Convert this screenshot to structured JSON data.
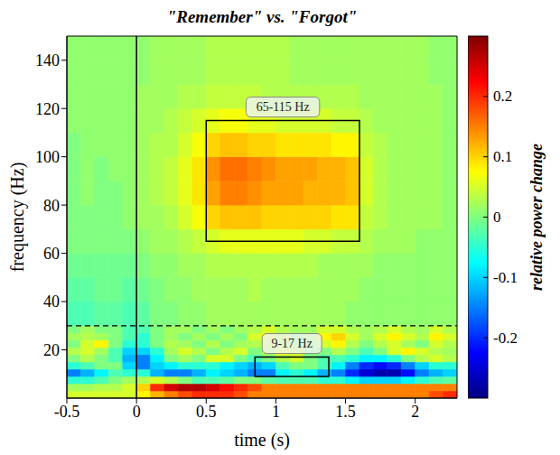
{
  "chart_data": {
    "type": "heatmap",
    "title": "\"Remember\" vs. \"Forgot\"",
    "x_label": "time (s)",
    "y_label": "frequency (Hz)",
    "xlim": [
      -0.5,
      2.3
    ],
    "ylim": [
      0,
      150
    ],
    "xticks": [
      -0.5,
      0,
      0.5,
      1,
      1.5,
      2
    ],
    "yticks": [
      20,
      40,
      60,
      80,
      100,
      120,
      140
    ],
    "x_edges": [
      -0.5,
      -0.4,
      -0.3,
      -0.2,
      -0.1,
      0,
      0.1,
      0.2,
      0.3,
      0.4,
      0.5,
      0.6,
      0.7,
      0.8,
      0.9,
      1,
      1.1,
      1.2,
      1.3,
      1.4,
      1.5,
      1.6,
      1.7,
      1.8,
      1.9,
      2,
      2.1,
      2.2,
      2.3
    ],
    "y_edges": [
      0,
      3,
      6,
      9,
      12,
      15,
      18,
      21,
      24,
      27,
      30,
      40,
      50,
      60,
      70,
      80,
      90,
      100,
      110,
      120,
      130,
      140,
      150
    ],
    "values": [
      [
        0.05,
        0.05,
        0.05,
        0.05,
        0.05,
        0.08,
        0.12,
        0.15,
        0.18,
        0.2,
        0.2,
        0.2,
        0.18,
        0.15,
        0.15,
        0.15,
        0.15,
        0.15,
        0.15,
        0.15,
        0.15,
        0.15,
        0.15,
        0.15,
        0.15,
        0.15,
        0.18,
        0.2
      ],
      [
        0.02,
        0.02,
        0.03,
        0.03,
        0.05,
        0.1,
        0.2,
        0.25,
        0.27,
        0.27,
        0.25,
        0.22,
        0.2,
        0.18,
        0.15,
        0.15,
        0.15,
        0.15,
        0.15,
        0.15,
        0.15,
        0.15,
        0.15,
        0.15,
        0.15,
        0.15,
        0.15,
        0.15
      ],
      [
        -0.05,
        -0.05,
        -0.03,
        0,
        0.02,
        0.03,
        0.05,
        0.03,
        0,
        -0.03,
        -0.03,
        -0.02,
        0,
        0,
        -0.02,
        -0.03,
        -0.03,
        -0.03,
        -0.05,
        -0.05,
        -0.08,
        -0.1,
        -0.1,
        -0.1,
        -0.08,
        -0.05,
        -0.03,
        -0.02
      ],
      [
        -0.15,
        -0.12,
        -0.08,
        -0.03,
        -0.05,
        -0.05,
        -0.12,
        -0.15,
        -0.15,
        -0.12,
        -0.08,
        -0.1,
        -0.12,
        -0.15,
        -0.15,
        -0.08,
        -0.05,
        -0.08,
        -0.12,
        -0.15,
        -0.2,
        -0.25,
        -0.27,
        -0.27,
        -0.22,
        -0.15,
        -0.12,
        -0.1
      ],
      [
        -0.05,
        -0.03,
        0,
        0,
        -0.1,
        -0.15,
        -0.1,
        -0.08,
        -0.05,
        -0.05,
        -0.05,
        -0.08,
        -0.1,
        -0.12,
        -0.1,
        -0.03,
        0,
        0,
        -0.03,
        -0.08,
        -0.15,
        -0.2,
        -0.22,
        -0.2,
        -0.15,
        -0.1,
        -0.05,
        -0.05
      ],
      [
        0,
        0.03,
        0,
        -0.03,
        -0.12,
        -0.15,
        -0.08,
        0,
        0.02,
        0,
        0.05,
        0.05,
        0,
        -0.03,
        0,
        0.03,
        0.05,
        0,
        -0.03,
        -0.03,
        -0.05,
        -0.08,
        -0.08,
        -0.05,
        0,
        0.03,
        0.05,
        0.03
      ],
      [
        0.03,
        0.05,
        0.02,
        -0.03,
        -0.1,
        -0.1,
        -0.05,
        0.02,
        0.05,
        0.03,
        0,
        0.03,
        0.05,
        0,
        0.03,
        0.08,
        0.05,
        0,
        0,
        0.03,
        0,
        -0.03,
        0,
        0.05,
        0.08,
        0.05,
        0.03,
        0.02
      ],
      [
        0,
        0.05,
        0.08,
        0,
        -0.05,
        -0.05,
        0,
        0.03,
        0.02,
        0,
        0.03,
        0,
        0.02,
        0.03,
        0.05,
        0.03,
        0,
        0.02,
        0.05,
        0.08,
        0.03,
        0,
        0.03,
        0.05,
        0.02,
        0,
        0.05,
        0.03
      ],
      [
        0.02,
        0.03,
        0.02,
        0,
        -0.03,
        -0.05,
        0,
        0.02,
        0,
        0.02,
        0,
        0.02,
        0,
        0.05,
        0.08,
        0.05,
        0,
        0.03,
        0.08,
        0.1,
        0.05,
        0.02,
        0.05,
        0.08,
        0.05,
        0.03,
        0.08,
        0.05
      ],
      [
        0,
        0.02,
        0,
        0,
        -0.03,
        -0.03,
        0,
        0.02,
        0.02,
        0,
        0.02,
        0,
        0.02,
        0.03,
        0.05,
        0.03,
        0.02,
        0.02,
        0.05,
        0.05,
        0.03,
        0.02,
        0.03,
        0.05,
        0.03,
        0.02,
        0.05,
        0.03
      ],
      [
        -0.03,
        -0.03,
        -0.02,
        -0.02,
        -0.03,
        -0.02,
        0,
        0,
        0.01,
        0.01,
        0.02,
        0.02,
        0.02,
        0.02,
        0.02,
        0.02,
        0.02,
        0.02,
        0.02,
        0.02,
        0.01,
        0.01,
        0.01,
        0.01,
        0.01,
        0.01,
        0.01,
        0.01
      ],
      [
        -0.02,
        -0.02,
        -0.01,
        -0.01,
        -0.02,
        -0.01,
        0,
        0.01,
        0.01,
        0.02,
        0.02,
        0.02,
        0.02,
        0.03,
        0.02,
        0.02,
        0.02,
        0.02,
        0.02,
        0.02,
        0.02,
        0.01,
        0.01,
        0.01,
        0.01,
        0.01,
        0.01,
        0.01
      ],
      [
        -0.01,
        -0.01,
        -0.01,
        -0.01,
        -0.01,
        0,
        0.01,
        0.01,
        0.02,
        0.02,
        0.03,
        0.03,
        0.03,
        0.03,
        0.03,
        0.03,
        0.03,
        0.03,
        0.02,
        0.02,
        0.02,
        0.02,
        0.01,
        0.01,
        0.01,
        0.01,
        0.01,
        0.01
      ],
      [
        0,
        0,
        0,
        0,
        0,
        0.01,
        0.02,
        0.02,
        0.03,
        0.04,
        0.05,
        0.06,
        0.06,
        0.06,
        0.06,
        0.06,
        0.06,
        0.05,
        0.05,
        0.04,
        0.04,
        0.03,
        0.02,
        0.02,
        0.02,
        0.01,
        0.01,
        0.01
      ],
      [
        0,
        0,
        0,
        0,
        0.01,
        0.02,
        0.02,
        0.03,
        0.05,
        0.07,
        0.1,
        0.11,
        0.11,
        0.11,
        0.1,
        0.1,
        0.1,
        0.1,
        0.1,
        0.09,
        0.09,
        0.04,
        0.03,
        0.02,
        0.02,
        0.02,
        0.02,
        0.01
      ],
      [
        0,
        0.01,
        0,
        0,
        0.01,
        0.02,
        0.03,
        0.04,
        0.06,
        0.09,
        0.13,
        0.15,
        0.15,
        0.14,
        0.13,
        0.13,
        0.13,
        0.12,
        0.12,
        0.12,
        0.11,
        0.05,
        0.03,
        0.02,
        0.02,
        0.02,
        0.02,
        0.01
      ],
      [
        0,
        0.01,
        0,
        0.01,
        0.01,
        0.02,
        0.03,
        0.04,
        0.06,
        0.09,
        0.14,
        0.16,
        0.16,
        0.15,
        0.14,
        0.13,
        0.13,
        0.13,
        0.12,
        0.12,
        0.11,
        0.05,
        0.03,
        0.02,
        0.02,
        0.02,
        0.02,
        0.01
      ],
      [
        0,
        0.01,
        0.01,
        0.01,
        0.01,
        0.02,
        0.03,
        0.03,
        0.05,
        0.07,
        0.1,
        0.11,
        0.11,
        0.1,
        0.1,
        0.09,
        0.09,
        0.09,
        0.09,
        0.08,
        0.08,
        0.04,
        0.03,
        0.02,
        0.02,
        0.02,
        0.02,
        0.01
      ],
      [
        0.01,
        0.01,
        0.01,
        0.01,
        0.01,
        0.02,
        0.02,
        0.03,
        0.04,
        0.05,
        0.06,
        0.07,
        0.07,
        0.06,
        0.06,
        0.05,
        0.05,
        0.05,
        0.05,
        0.04,
        0.04,
        0.03,
        0.02,
        0.02,
        0.02,
        0.02,
        0.02,
        0.01
      ],
      [
        0.01,
        0.01,
        0.01,
        0.01,
        0.01,
        0.02,
        0.02,
        0.02,
        0.03,
        0.03,
        0.04,
        0.04,
        0.04,
        0.04,
        0.03,
        0.03,
        0.03,
        0.03,
        0.03,
        0.03,
        0.03,
        0.02,
        0.02,
        0.02,
        0.02,
        0.02,
        0.02,
        0.01
      ],
      [
        0.01,
        0.01,
        0.01,
        0.01,
        0.01,
        0.01,
        0.02,
        0.02,
        0.02,
        0.02,
        0.03,
        0.03,
        0.03,
        0.03,
        0.03,
        0.03,
        0.02,
        0.02,
        0.02,
        0.02,
        0.02,
        0.02,
        0.02,
        0.02,
        0.02,
        0.02,
        0.01,
        0.01
      ],
      [
        0.01,
        0.01,
        0.01,
        0.01,
        0.01,
        0.01,
        0.02,
        0.02,
        0.02,
        0.02,
        0.03,
        0.03,
        0.03,
        0.03,
        0.03,
        0.03,
        0.02,
        0.02,
        0.02,
        0.02,
        0.02,
        0.02,
        0.02,
        0.02,
        0.02,
        0.02,
        0.01,
        0.01
      ]
    ],
    "colorbar": {
      "range": [
        -0.3,
        0.3
      ],
      "ticks": [
        -0.2,
        -0.1,
        0,
        0.1,
        0.2
      ],
      "label": "relative power change"
    },
    "event_time": 0,
    "split_frequency": 30,
    "clusters": [
      {
        "label": "65-115 Hz",
        "time": [
          0.5,
          1.6
        ],
        "frequency": [
          65,
          115
        ]
      },
      {
        "label": "9-17 Hz",
        "time": [
          0.85,
          1.38
        ],
        "frequency": [
          9,
          17
        ]
      }
    ]
  }
}
